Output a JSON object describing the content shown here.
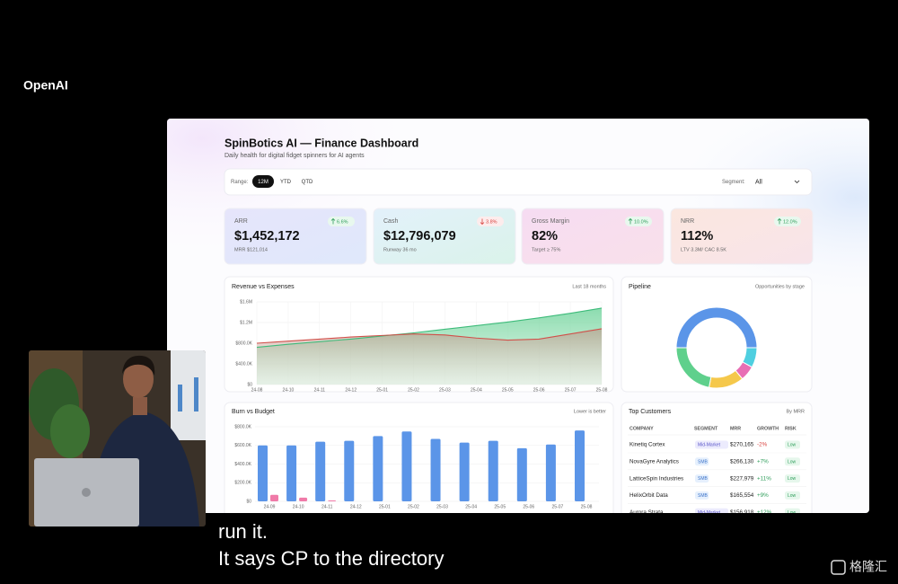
{
  "brand": "OpenAI",
  "dashboard": {
    "title": "SpinBotics AI — Finance Dashboard",
    "subtitle": "Daily health for digital fidget spinners for AI agents",
    "filters": {
      "range_label": "Range:",
      "ranges": [
        "12M",
        "YTD",
        "QTD"
      ],
      "segment_label": "Segment:",
      "segment": "All"
    },
    "kpis": [
      {
        "label": "ARR",
        "value": "$1,452,172",
        "sub": "MRR $121,014",
        "change": "6.6%",
        "trend": "up"
      },
      {
        "label": "Cash",
        "value": "$12,796,079",
        "sub": "Runway 36 mo",
        "change": "3.8%",
        "trend": "down"
      },
      {
        "label": "Gross Margin",
        "value": "82%",
        "sub": "Target ≥ 75%",
        "change": "10.0%",
        "trend": "up"
      },
      {
        "label": "NRR",
        "value": "112%",
        "sub": "LTV 3.3M/ CAC 8.5K",
        "change": "12.0%",
        "trend": "up"
      }
    ],
    "charts": [
      {
        "type": "area",
        "title": "Revenue vs Expenses",
        "subtitle": "Last 18 months",
        "categories": [
          "24-08",
          "24-10",
          "24-11",
          "24-12",
          "25-01",
          "25-02",
          "25-03",
          "25-04",
          "25-05",
          "25-06",
          "25-07",
          "25-08"
        ],
        "series": [
          {
            "color": "#3dbb7a",
            "values": [
              720000,
              780000,
              830000,
              880000,
              940000,
              1000000,
              1070000,
              1140000,
              1210000,
              1290000,
              1380000,
              1480000
            ]
          },
          {
            "color": "#d0504a",
            "values": [
              800000,
              840000,
              880000,
              920000,
              950000,
              980000,
              960000,
              900000,
              860000,
              880000,
              980000,
              1080000
            ]
          }
        ],
        "ylim": [
          0,
          1600000
        ],
        "yticks": [
          {
            "value": 0,
            "label": "$0"
          },
          {
            "value": 400000,
            "label": "$400.0K"
          },
          {
            "value": 800000,
            "label": "$800.0K"
          },
          {
            "value": 1200000,
            "label": "$1.2M"
          },
          {
            "value": 1600000,
            "label": "$1.6M"
          }
        ],
        "grid": true
      },
      {
        "type": "bar",
        "title": "Burn vs Budget",
        "subtitle": "Lower is better",
        "categories": [
          "24-09",
          "24-10",
          "24-11",
          "24-12",
          "25-01",
          "25-02",
          "25-03",
          "25-04",
          "25-05",
          "25-06",
          "25-07",
          "25-08"
        ],
        "series": [
          {
            "color": "#5b95e8",
            "values": [
              600000,
              600000,
              640000,
              650000,
              700000,
              750000,
              670000,
              630000,
              650000,
              570000,
              610000,
              760000
            ]
          },
          {
            "color": "#f07aa8",
            "values": [
              70000,
              40000,
              10000,
              0,
              0,
              0,
              0,
              0,
              0,
              0,
              0,
              0
            ]
          }
        ],
        "ylim": [
          0,
          800000
        ],
        "yticks": [
          {
            "value": 0,
            "label": "$0"
          },
          {
            "value": 200000,
            "label": "$200.0K"
          },
          {
            "value": 400000,
            "label": "$400.0K"
          },
          {
            "value": 600000,
            "label": "$600.0K"
          },
          {
            "value": 800000,
            "label": "$800.0K"
          }
        ],
        "grid": true
      },
      {
        "type": "donut",
        "title": "Pipeline",
        "subtitle": "Opportunities by stage",
        "values": [
          50,
          8,
          6,
          14,
          22
        ],
        "colors": [
          "#5b95e8",
          "#4fcfe0",
          "#e86fb4",
          "#f5c84b",
          "#5fd08c"
        ]
      }
    ],
    "customers": {
      "title": "Top Customers",
      "subtitle": "By MRR",
      "columns": [
        "COMPANY",
        "SEGMENT",
        "MRR",
        "GROWTH",
        "RISK"
      ],
      "rows": [
        [
          "Kinetiq Cortex",
          "Mid-Market",
          "$270,165",
          "-2%",
          "Low"
        ],
        [
          "NovaGyre Analytics",
          "SMB",
          "$266,130",
          "+7%",
          "Low"
        ],
        [
          "LatticeSpin Industries",
          "SMB",
          "$227,979",
          "+11%",
          "Low"
        ],
        [
          "HelixOrbit Data",
          "SMB",
          "$165,554",
          "+9%",
          "Low"
        ],
        [
          "Aurora Strata",
          "Mid-Market",
          "$156,918",
          "+12%",
          "Low"
        ]
      ]
    }
  },
  "captions": [
    "run it.",
    "It says CP to the directory"
  ],
  "watermark": "格隆汇"
}
